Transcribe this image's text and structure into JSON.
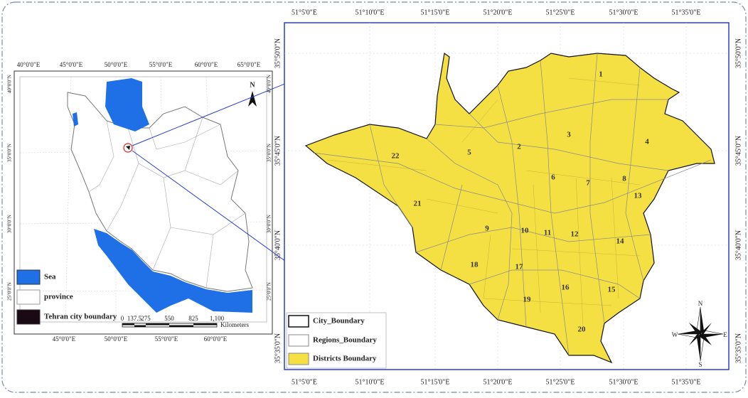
{
  "left_map": {
    "lon_top": [
      "40°0'0\"E",
      "45°0'0\"E",
      "50°0'0\"E",
      "55°0'0\"E",
      "60°0'0\"E",
      "65°0'0\"E"
    ],
    "lon_bottom": [
      "45°0'0\"E",
      "50°0'0\"E",
      "55°0'0\"E",
      "60°0'0\"E"
    ],
    "lat_left": [
      "40°0'0\"N",
      "35°0'0\"N",
      "30°0'0\"N",
      "25°0'0\"N"
    ],
    "lat_right": [
      "40°0'0\"N",
      "35°0'0\"N",
      "30°0'0\"N",
      "25°0'0\"N"
    ],
    "north": "N",
    "legend": [
      "Sea",
      "province",
      "Tehran city boundary"
    ],
    "scale": {
      "ticks": [
        "0",
        "137.5",
        "275",
        "550",
        "825",
        "1,100"
      ],
      "unit": "Kilometers"
    }
  },
  "right_map": {
    "lon_top": [
      "51°5'0\"E",
      "51°10'0\"E",
      "51°15'0\"E",
      "51°20'0\"E",
      "51°25'0\"E",
      "51°30'0\"E",
      "51°35'0\"E"
    ],
    "lon_bottom": [
      "51°5'0\"E",
      "51°10'0\"E",
      "51°15'0\"E",
      "51°20'0\"E",
      "51°25'0\"E",
      "51°30'0\"E",
      "51°35'0\"E"
    ],
    "lat_left": [
      "35°50'0\"N",
      "35°45'0\"N",
      "35°40'0\"N",
      "35°35'0\"N"
    ],
    "lat_right": [
      "35°50'0\"N",
      "35°45'0\"N",
      "35°40'0\"N",
      "35°35'0\"N"
    ],
    "legend": [
      "City_Boundary",
      "Regions_Boundary",
      "Districts Boundary"
    ],
    "regions": [
      "1",
      "2",
      "3",
      "4",
      "5",
      "6",
      "7",
      "8",
      "9",
      "10",
      "11",
      "12",
      "13",
      "14",
      "15",
      "16",
      "17",
      "18",
      "19",
      "20",
      "21",
      "22"
    ],
    "compass": {
      "n": "N",
      "s": "S",
      "e": "E",
      "w": "W"
    }
  }
}
